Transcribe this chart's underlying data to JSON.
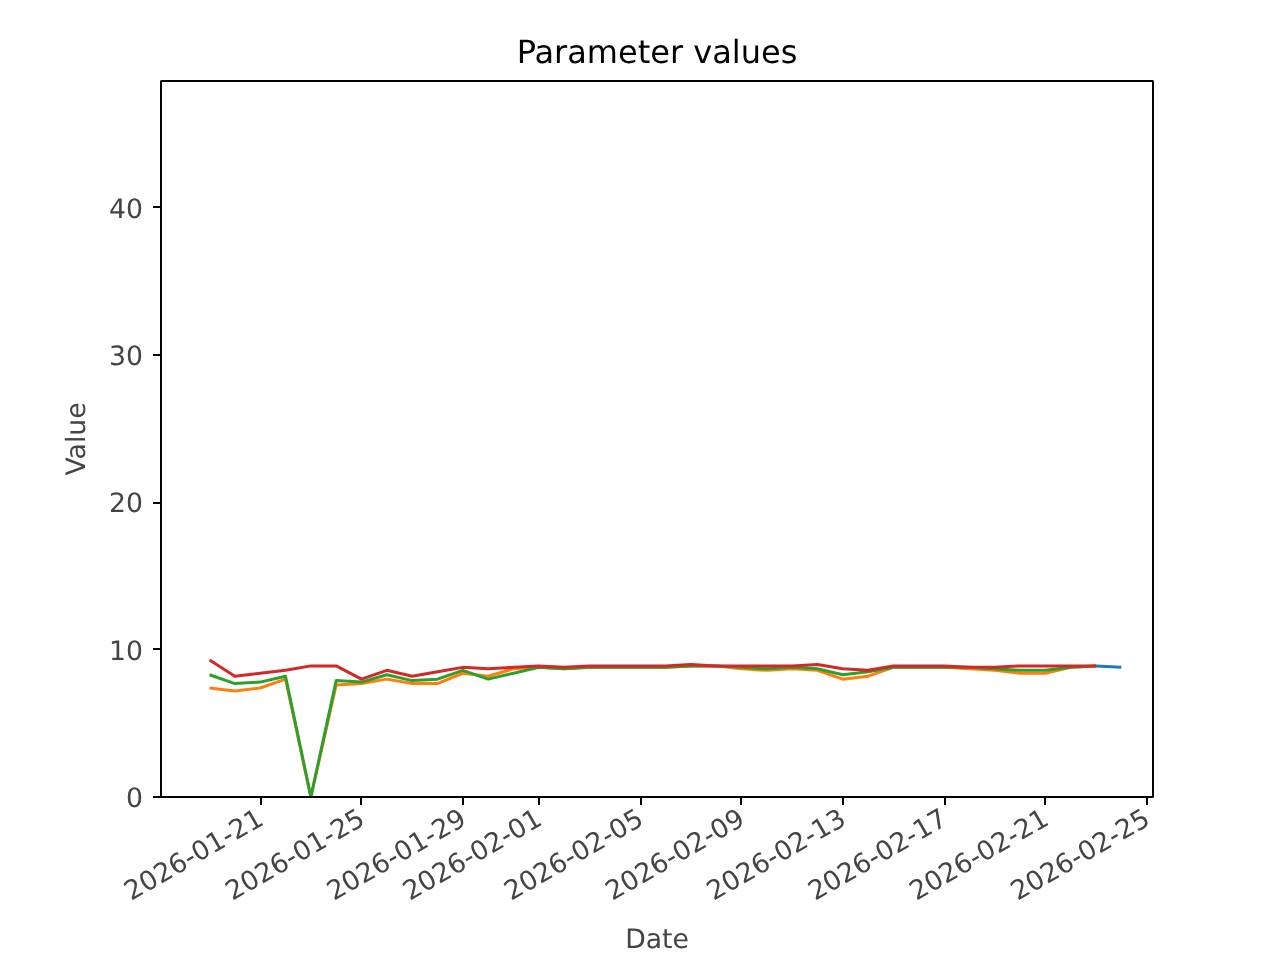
{
  "chart_data": {
    "type": "line",
    "title": "Parameter values",
    "xlabel": "Date",
    "ylabel": "Value",
    "x": [
      "2026-01-19",
      "2026-01-20",
      "2026-01-21",
      "2026-01-22",
      "2026-01-23",
      "2026-01-24",
      "2026-01-25",
      "2026-01-26",
      "2026-01-27",
      "2026-01-28",
      "2026-01-29",
      "2026-01-30",
      "2026-01-31",
      "2026-02-01",
      "2026-02-02",
      "2026-02-03",
      "2026-02-04",
      "2026-02-05",
      "2026-02-06",
      "2026-02-07",
      "2026-02-08",
      "2026-02-09",
      "2026-02-10",
      "2026-02-11",
      "2026-02-12",
      "2026-02-13",
      "2026-02-14",
      "2026-02-15",
      "2026-02-16",
      "2026-02-17",
      "2026-02-18",
      "2026-02-19",
      "2026-02-20",
      "2026-02-21",
      "2026-02-22",
      "2026-02-23",
      "2026-02-24"
    ],
    "series": [
      {
        "color": "#1f77b4",
        "values": [
          null,
          null,
          null,
          null,
          null,
          null,
          null,
          null,
          null,
          null,
          null,
          null,
          null,
          null,
          null,
          null,
          null,
          null,
          null,
          null,
          null,
          null,
          null,
          null,
          null,
          null,
          null,
          null,
          null,
          null,
          null,
          null,
          null,
          null,
          null,
          8.9,
          8.8
        ]
      },
      {
        "color": "#ff7f0e",
        "values": [
          7.4,
          7.2,
          7.4,
          8.0,
          0,
          7.6,
          7.7,
          8.0,
          7.7,
          7.7,
          8.4,
          8.2,
          8.7,
          8.8,
          8.7,
          8.8,
          8.8,
          8.8,
          8.8,
          8.9,
          8.9,
          8.7,
          8.6,
          8.7,
          8.6,
          8.0,
          8.2,
          8.8,
          8.8,
          8.8,
          8.7,
          8.6,
          8.4,
          8.4,
          8.8,
          8.9,
          null
        ]
      },
      {
        "color": "#2ca02c",
        "values": [
          8.3,
          7.7,
          7.8,
          8.2,
          0,
          7.9,
          7.8,
          8.3,
          7.9,
          8.0,
          8.6,
          8.0,
          8.4,
          8.8,
          8.7,
          8.8,
          8.8,
          8.8,
          8.8,
          8.9,
          8.9,
          8.8,
          8.7,
          8.8,
          8.7,
          8.3,
          8.5,
          8.8,
          8.8,
          8.8,
          8.8,
          8.7,
          8.6,
          8.6,
          8.8,
          8.9,
          null
        ]
      },
      {
        "color": "#d62728",
        "values": [
          9.3,
          8.2,
          8.4,
          8.6,
          8.9,
          8.9,
          8.0,
          8.6,
          8.2,
          8.5,
          8.8,
          8.7,
          8.8,
          8.9,
          8.8,
          8.9,
          8.9,
          8.9,
          8.9,
          9.0,
          8.9,
          8.9,
          8.9,
          8.9,
          9.0,
          8.7,
          8.6,
          8.9,
          8.9,
          8.9,
          8.8,
          8.8,
          8.9,
          8.9,
          8.9,
          8.9,
          null
        ]
      }
    ],
    "xlim": [
      "2026-01-17T02:00",
      "2026-02-25T06:00"
    ],
    "xticks": [
      "2026-01-21",
      "2026-01-25",
      "2026-01-29",
      "2026-02-01",
      "2026-02-05",
      "2026-02-09",
      "2026-02-13",
      "2026-02-17",
      "2026-02-21",
      "2026-02-25"
    ],
    "ylim": [
      0,
      48.6
    ],
    "yticks": [
      0,
      10,
      20,
      30,
      40
    ],
    "grid": false
  }
}
